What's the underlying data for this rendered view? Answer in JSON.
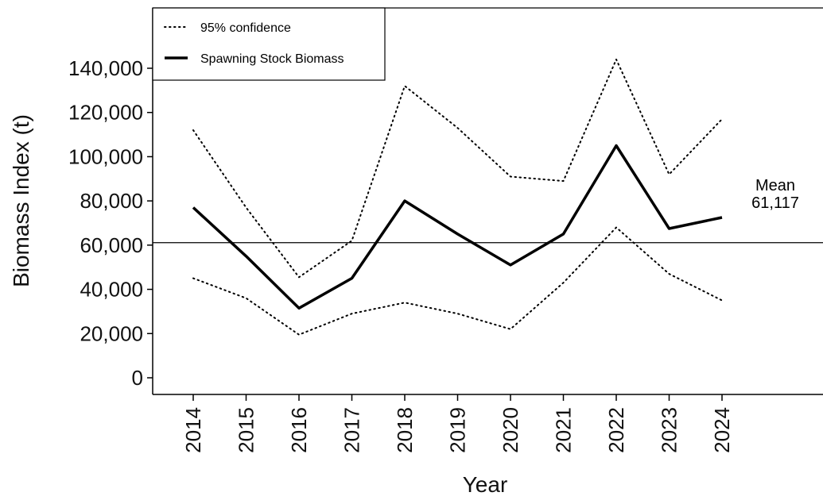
{
  "chart_data": {
    "type": "line",
    "xlabel": "Year",
    "ylabel": "Biomass Index (t)",
    "x": [
      2014,
      2015,
      2016,
      2017,
      2018,
      2019,
      2020,
      2021,
      2022,
      2023,
      2024
    ],
    "ylim": [
      0,
      140000
    ],
    "yticks": [
      0,
      20000,
      40000,
      60000,
      80000,
      100000,
      120000,
      140000
    ],
    "ytick_labels": [
      "0",
      "20,000",
      "40,000",
      "60,000",
      "80,000",
      "100,000",
      "120,000",
      "140,000"
    ],
    "series": [
      {
        "name": "Spawning Stock Biomass",
        "style": "solid",
        "color": "#000000",
        "values": [
          77000,
          55000,
          31500,
          45000,
          80000,
          65000,
          51000,
          65000,
          105000,
          67500,
          72500
        ]
      },
      {
        "name": "95% confidence",
        "style": "dotted",
        "color": "#000000",
        "values": [
          112000,
          77000,
          45500,
          62000,
          132000,
          113000,
          91000,
          89000,
          144000,
          92000,
          117000
        ]
      },
      {
        "name": "",
        "style": "dotted",
        "color": "#000000",
        "values": [
          45000,
          36000,
          19500,
          29000,
          34000,
          29000,
          22000,
          43000,
          68000,
          47000,
          35000
        ]
      }
    ],
    "reference_line": {
      "value": 61117,
      "label_top": "Mean",
      "label_bottom": "61,117"
    },
    "legend": {
      "placement": "top-left",
      "entries": [
        {
          "label": "95% confidence",
          "style": "dotted"
        },
        {
          "label": "Spawning Stock Biomass",
          "style": "solid"
        }
      ]
    },
    "grid": false
  }
}
